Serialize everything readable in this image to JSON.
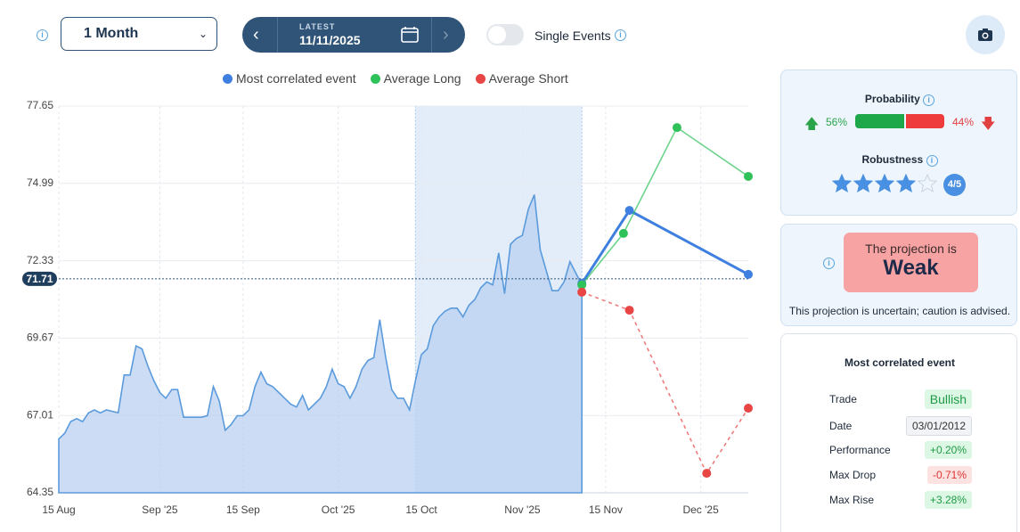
{
  "toolbar": {
    "period": "1 Month",
    "latest_label": "LATEST",
    "latest_date": "11/11/2025",
    "single_events": "Single Events"
  },
  "chart_data": {
    "type": "line",
    "ylim": [
      64.35,
      77.65
    ],
    "yticks": [
      64.35,
      67.01,
      69.67,
      72.33,
      74.99,
      77.65
    ],
    "xlim": [
      0,
      116
    ],
    "xticks": [
      {
        "value": 0,
        "label": "15 Aug"
      },
      {
        "value": 17,
        "label": "Sep '25"
      },
      {
        "value": 31,
        "label": "15 Sep"
      },
      {
        "value": 47,
        "label": "Oct '25"
      },
      {
        "value": 61,
        "label": "15 Oct"
      },
      {
        "value": 78,
        "label": "Nov '25"
      },
      {
        "value": 92,
        "label": "15 Nov"
      },
      {
        "value": 108,
        "label": "Dec '25"
      }
    ],
    "grid": true,
    "reference": {
      "value": 71.71,
      "label": "71.71"
    },
    "shaded_x": [
      60,
      88
    ],
    "history": {
      "color": "#5b9bdc",
      "x": [
        0,
        1,
        2,
        3,
        4,
        5,
        6,
        7,
        8,
        9,
        10,
        11,
        12,
        13,
        14,
        15,
        16,
        17,
        18,
        19,
        20,
        21,
        22,
        23,
        24,
        25,
        26,
        27,
        28,
        29,
        30,
        31,
        32,
        33,
        34,
        35,
        36,
        37,
        38,
        39,
        40,
        41,
        42,
        43,
        44,
        45,
        46,
        47,
        48,
        49,
        50,
        51,
        52,
        53,
        54,
        55,
        56,
        57,
        58,
        59,
        60,
        61,
        62,
        63,
        64,
        65,
        66,
        67,
        68,
        69,
        70,
        71,
        72,
        73,
        74,
        75,
        76,
        77,
        78,
        79,
        80,
        81,
        82,
        83,
        84,
        85,
        86,
        87,
        88
      ],
      "values": [
        66.2,
        66.4,
        66.8,
        66.9,
        66.8,
        67.1,
        67.2,
        67.1,
        67.2,
        67.15,
        67.1,
        68.4,
        68.4,
        69.4,
        69.3,
        68.7,
        68.2,
        67.8,
        67.6,
        67.9,
        67.9,
        66.95,
        66.95,
        66.95,
        66.95,
        67.0,
        68.0,
        67.5,
        66.5,
        66.7,
        67.0,
        67.0,
        67.2,
        68.0,
        68.5,
        68.1,
        68.0,
        67.8,
        67.6,
        67.4,
        67.3,
        67.7,
        67.2,
        67.4,
        67.6,
        68.0,
        68.6,
        68.1,
        68.0,
        67.6,
        68.0,
        68.6,
        68.9,
        69.0,
        70.3,
        69.0,
        67.9,
        67.6,
        67.6,
        67.2,
        68.2,
        69.1,
        69.3,
        70.1,
        70.4,
        70.6,
        70.7,
        70.7,
        70.4,
        70.8,
        71.0,
        71.4,
        71.6,
        71.5,
        72.6,
        71.2,
        72.9,
        73.1,
        73.2,
        74.1,
        74.6,
        72.7,
        72.0,
        71.3,
        71.3,
        71.6,
        72.3,
        71.9,
        71.5
      ]
    },
    "series": [
      {
        "name": "Most correlated event",
        "color": "#3f7fe0",
        "x": [
          88,
          96,
          116
        ],
        "values": [
          71.55,
          74.06,
          71.86
        ]
      },
      {
        "name": "Average Long",
        "color": "#2fc25b",
        "x": [
          88,
          95,
          104,
          116
        ],
        "values": [
          71.5,
          73.27,
          76.91,
          75.23
        ]
      },
      {
        "name": "Average Short",
        "color": "#e84545",
        "dashed": true,
        "x": [
          88,
          96,
          109,
          116
        ],
        "values": [
          71.25,
          70.63,
          65.02,
          67.26
        ]
      }
    ]
  },
  "panel": {
    "probability": {
      "title": "Probability",
      "up": {
        "value": 56,
        "label": "56%"
      },
      "down": {
        "value": 44,
        "label": "44%"
      }
    },
    "robustness": {
      "title": "Robustness",
      "score": 4,
      "max": 5,
      "label": "4/5"
    },
    "projection": {
      "intro": "The projection is",
      "verdict": "Weak",
      "note": "This projection is uncertain; caution is advised."
    },
    "event": {
      "title": "Most correlated event",
      "rows": [
        [
          "Trade",
          "Bullish"
        ],
        [
          "Date",
          "03/01/2012"
        ],
        [
          "Performance",
          "+0.20%"
        ],
        [
          "Max Drop",
          "-0.71%"
        ],
        [
          "Max Rise",
          "+3.28%"
        ]
      ]
    }
  }
}
